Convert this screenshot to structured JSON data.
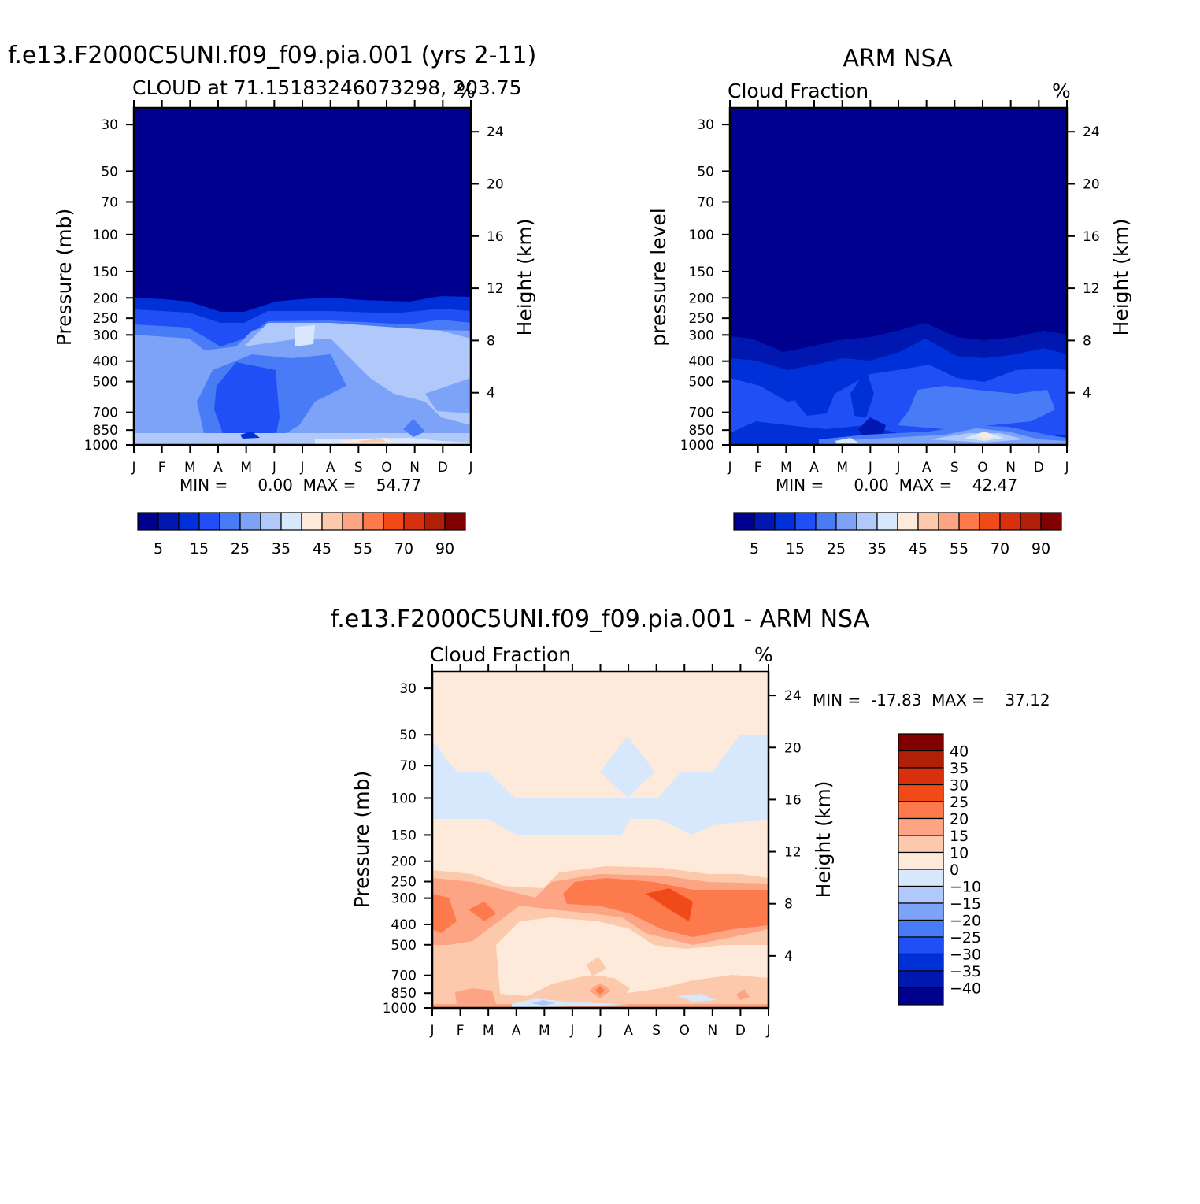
{
  "palette": [
    "#00008f",
    "#0018b0",
    "#0030d8",
    "#1f4ff5",
    "#4a7bf7",
    "#7da3f8",
    "#b0c8fa",
    "#d8e8fc",
    "#feeada",
    "#fdc9ac",
    "#fca483",
    "#fc7a4c",
    "#f04a18",
    "#d8300c",
    "#b02008",
    "#800000"
  ],
  "chart_data": [
    {
      "id": "model",
      "type": "heatmap",
      "title": "f.e13.F2000C5UNI.f09_f09.pia.001 (yrs 2-11)",
      "subtitle_left": "CLOUD at 71.15183246073298, 203.75",
      "subtitle_right": "%",
      "ylabel": "Pressure (mb)",
      "ylabel_right": "Height (km)",
      "x_ticks": [
        "J",
        "F",
        "M",
        "A",
        "M",
        "J",
        "J",
        "A",
        "S",
        "O",
        "N",
        "D",
        "J"
      ],
      "y_ticks": [
        "30",
        "50",
        "70",
        "100",
        "150",
        "200",
        "250",
        "300",
        "400",
        "500",
        "700",
        "850",
        "1000"
      ],
      "y_ticks_right": [
        "24",
        "20",
        "16",
        "12",
        "8",
        "4"
      ],
      "y_scale": "log",
      "ylim": [
        1000,
        25
      ],
      "min_max": "MIN =      0.00  MAX =    54.77",
      "colorbar_labels": [
        "5",
        "15",
        "25",
        "35",
        "45",
        "55",
        "70",
        "90"
      ]
    },
    {
      "id": "obs",
      "type": "heatmap",
      "title": "ARM NSA",
      "subtitle_left": "Cloud Fraction",
      "subtitle_right": "%",
      "ylabel": "pressure level",
      "ylabel_right": "Height (km)",
      "x_ticks": [
        "J",
        "F",
        "M",
        "A",
        "M",
        "J",
        "J",
        "A",
        "S",
        "O",
        "N",
        "D",
        "J"
      ],
      "y_ticks": [
        "30",
        "50",
        "70",
        "100",
        "150",
        "200",
        "250",
        "300",
        "400",
        "500",
        "700",
        "850",
        "1000"
      ],
      "y_ticks_right": [
        "24",
        "20",
        "16",
        "12",
        "8",
        "4"
      ],
      "y_scale": "log",
      "ylim": [
        1000,
        25
      ],
      "min_max": "MIN =      0.00  MAX =    42.47",
      "colorbar_labels": [
        "5",
        "15",
        "25",
        "35",
        "45",
        "55",
        "70",
        "90"
      ]
    },
    {
      "id": "diff",
      "type": "heatmap",
      "title": "f.e13.F2000C5UNI.f09_f09.pia.001 - ARM NSA",
      "subtitle_left": "Cloud Fraction",
      "subtitle_right": "%",
      "ylabel": "Pressure (mb)",
      "ylabel_right": "Height (km)",
      "x_ticks": [
        "J",
        "F",
        "M",
        "A",
        "M",
        "J",
        "J",
        "A",
        "S",
        "O",
        "N",
        "D",
        "J"
      ],
      "y_ticks": [
        "30",
        "50",
        "70",
        "100",
        "150",
        "200",
        "250",
        "300",
        "400",
        "500",
        "700",
        "850",
        "1000"
      ],
      "y_ticks_right": [
        "24",
        "20",
        "16",
        "12",
        "8",
        "4"
      ],
      "y_scale": "log",
      "ylim": [
        1000,
        25
      ],
      "min_max": "MIN =  -17.83  MAX =    37.12",
      "colorbar_labels": [
        "40",
        "35",
        "30",
        "25",
        "20",
        "15",
        "10",
        "0",
        "-10",
        "-15",
        "-20",
        "-25",
        "-30",
        "-35",
        "-40"
      ]
    }
  ]
}
